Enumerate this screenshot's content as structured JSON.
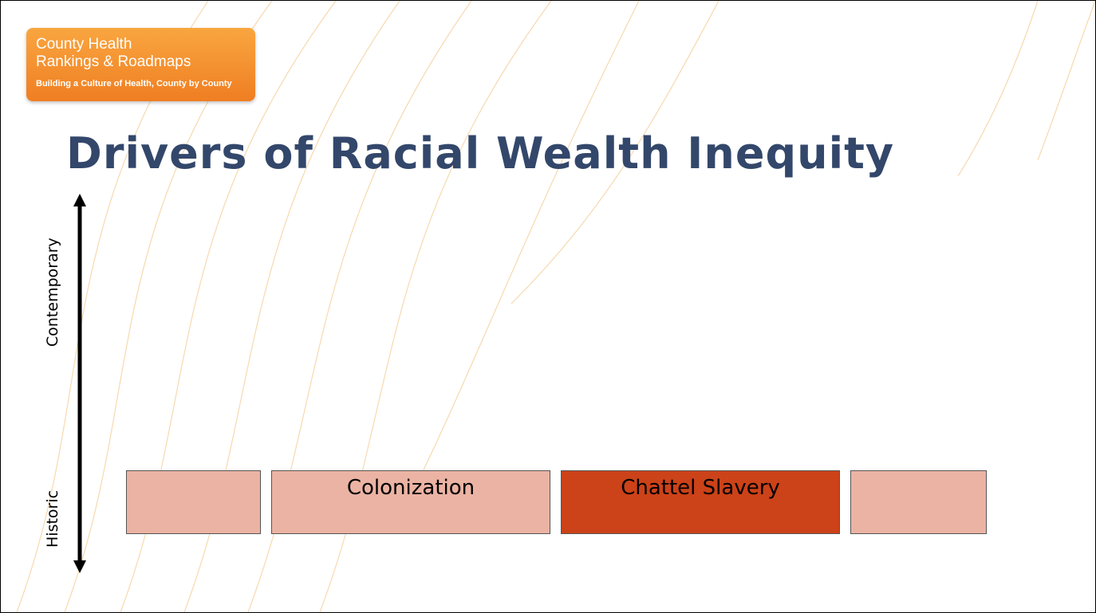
{
  "logo": {
    "line1": "County Health",
    "line2": "Rankings & Roadmaps",
    "tagline": "Building a Culture of Health, County by County"
  },
  "title": "Drivers of Racial Wealth Inequity",
  "axis": {
    "top": "Contemporary",
    "bottom": "Historic"
  },
  "boxes": [
    {
      "label": null
    },
    {
      "label": "Colonization"
    },
    {
      "label": "Chattel Slavery"
    },
    {
      "label": null
    }
  ]
}
